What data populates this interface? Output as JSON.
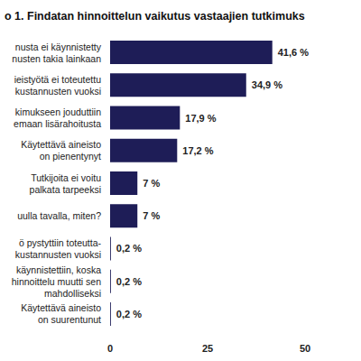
{
  "chart_data": {
    "type": "bar",
    "title": "o 1. Findatan hinnoittelun vaikutus vastaajien tutkimuks",
    "orientation": "horizontal",
    "categories": [
      "nusta ei käynnistetty\nnusten takia lainkaan",
      "ieistyötä ei toteutettu\nkustannusten vuoksi",
      "kimukseen jouduttiin\nemaan lisärahoitusta",
      "Käytettävä aineisto\non pienentynyt",
      "Tutkijoita ei voitu\npalkata tarpeeksi",
      "uulla tavalla, miten?",
      "ö pystyttiin toteutta-\nkustannusten vuoksi",
      "käynnistettiin, koska\nhinnoittelu muutti sen\nmahdolliseksi",
      "Käytettävä aineisto\non suurentunut"
    ],
    "values": [
      41.6,
      34.9,
      17.9,
      17.2,
      7,
      7,
      0.2,
      0.2,
      0.2
    ],
    "value_labels": [
      "41,6 %",
      "34,9 %",
      "17,9 %",
      "17,2 %",
      "7 %",
      "7 %",
      "0,2 %",
      "0,2 %",
      "0,2 %"
    ],
    "data_labels": true,
    "color": "#1e1d57",
    "xlim": [
      0,
      50
    ],
    "xticks": [
      0,
      25,
      50
    ],
    "grid": false
  }
}
